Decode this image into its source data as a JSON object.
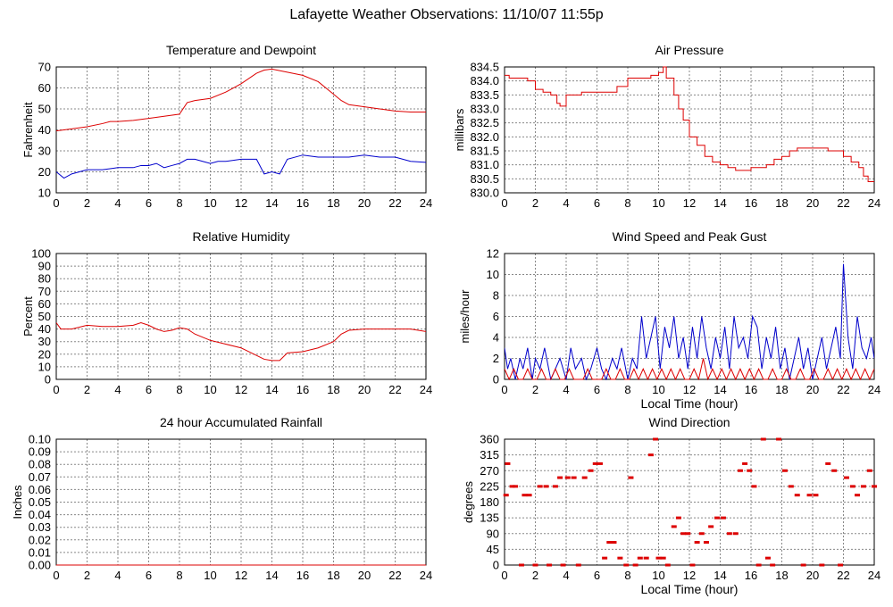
{
  "page": {
    "title": "Lafayette Weather Observations: 11/10/07 11:55p"
  },
  "colors": {
    "red": "#dd0000",
    "blue": "#0000cc",
    "grid": "#888888",
    "frame": "#000000"
  },
  "chart_data": [
    {
      "id": "temp",
      "type": "line",
      "title": "Temperature and Dewpoint",
      "xlabel": "",
      "ylabel": "Fahrenheit",
      "xlim": [
        0,
        24
      ],
      "ylim": [
        10,
        70
      ],
      "xticks": [
        0,
        2,
        4,
        6,
        8,
        10,
        12,
        14,
        16,
        18,
        20,
        22,
        24
      ],
      "xtick_labels": [
        "0",
        "2",
        "4",
        "6",
        "8",
        "10",
        "12",
        "14",
        "16",
        "18",
        "20",
        "22",
        "24"
      ],
      "yticks": [
        10,
        20,
        30,
        40,
        50,
        60,
        70
      ],
      "ytick_labels": [
        "10",
        "20",
        "30",
        "40",
        "50",
        "60",
        "70"
      ],
      "grid": true,
      "series": [
        {
          "color": "#dd0000",
          "style": "line",
          "x": [
            0,
            1,
            2,
            3,
            3.5,
            4,
            5,
            5.5,
            6,
            7,
            8,
            8.5,
            9,
            10,
            11,
            12,
            13,
            13.5,
            14,
            15,
            16,
            17,
            18,
            18.5,
            19,
            20,
            21,
            22,
            23,
            24
          ],
          "y": [
            39.5,
            40.5,
            41.5,
            43,
            44,
            44,
            44.5,
            45,
            45.5,
            46.5,
            47.5,
            53,
            54,
            55,
            58,
            62,
            67,
            68.5,
            69,
            67.5,
            66,
            63,
            57,
            54,
            52,
            51,
            50,
            49,
            48.5,
            48.5
          ]
        },
        {
          "color": "#0000cc",
          "style": "line",
          "x": [
            0,
            0.5,
            1,
            1.5,
            2,
            3,
            4,
            5,
            5.5,
            6,
            6.5,
            7,
            7.5,
            8,
            8.5,
            9,
            9.5,
            10,
            10.5,
            11,
            12,
            13,
            13.5,
            14,
            14.5,
            15,
            15.5,
            16,
            17,
            18,
            19,
            20,
            21,
            22,
            23,
            24
          ],
          "y": [
            20,
            17,
            19,
            20,
            21,
            21,
            22,
            22,
            23,
            23,
            24,
            22,
            23,
            24,
            26,
            26,
            25,
            24,
            25,
            25,
            26,
            26,
            19,
            20,
            19,
            26,
            27,
            28,
            27,
            27,
            27,
            28,
            27,
            27,
            25,
            24.5
          ]
        }
      ]
    },
    {
      "id": "pressure",
      "type": "line",
      "title": "Air Pressure",
      "xlabel": "",
      "ylabel": "millibars",
      "xlim": [
        0,
        24
      ],
      "ylim": [
        830.0,
        834.5
      ],
      "xticks": [
        0,
        2,
        4,
        6,
        8,
        10,
        12,
        14,
        16,
        18,
        20,
        22,
        24
      ],
      "xtick_labels": [
        "0",
        "2",
        "4",
        "6",
        "8",
        "10",
        "12",
        "14",
        "16",
        "18",
        "20",
        "22",
        "24"
      ],
      "yticks": [
        830.0,
        830.5,
        831.0,
        831.5,
        832.0,
        832.5,
        833.0,
        833.5,
        834.0,
        834.5
      ],
      "ytick_labels": [
        "830.0",
        "830.5",
        "831.0",
        "831.5",
        "832.0",
        "832.5",
        "833.0",
        "833.5",
        "834.0",
        "834.5"
      ],
      "grid": true,
      "series": [
        {
          "color": "#dd0000",
          "style": "step",
          "x": [
            0,
            0.3,
            1.5,
            2,
            2.5,
            3,
            3.4,
            3.6,
            4,
            4.5,
            5,
            6,
            7,
            7.3,
            8,
            9,
            9.5,
            10,
            10.3,
            10.5,
            11,
            11.3,
            11.6,
            12,
            12.5,
            13,
            13.5,
            14,
            14.5,
            15,
            16,
            17,
            17.5,
            18,
            18.5,
            19,
            20,
            21,
            21.5,
            22,
            22.5,
            23,
            23.3,
            23.6,
            24
          ],
          "y": [
            834.2,
            834.1,
            834.0,
            833.7,
            833.6,
            833.5,
            833.2,
            833.1,
            833.5,
            833.5,
            833.6,
            833.6,
            833.6,
            833.8,
            834.1,
            834.1,
            834.2,
            834.3,
            834.5,
            834.1,
            833.5,
            833.0,
            832.6,
            832.0,
            831.7,
            831.3,
            831.1,
            831.0,
            830.9,
            830.8,
            830.9,
            831.0,
            831.2,
            831.3,
            831.5,
            831.6,
            831.6,
            831.5,
            831.5,
            831.3,
            831.1,
            830.9,
            830.6,
            830.4,
            830.4
          ]
        }
      ]
    },
    {
      "id": "humidity",
      "type": "line",
      "title": "Relative Humidity",
      "xlabel": "",
      "ylabel": "Percent",
      "xlim": [
        0,
        24
      ],
      "ylim": [
        0,
        100
      ],
      "xticks": [
        0,
        2,
        4,
        6,
        8,
        10,
        12,
        14,
        16,
        18,
        20,
        22,
        24
      ],
      "xtick_labels": [
        "0",
        "2",
        "4",
        "6",
        "8",
        "10",
        "12",
        "14",
        "16",
        "18",
        "20",
        "22",
        "24"
      ],
      "yticks": [
        0,
        10,
        20,
        30,
        40,
        50,
        60,
        70,
        80,
        90,
        100
      ],
      "ytick_labels": [
        "0",
        "10",
        "20",
        "30",
        "40",
        "50",
        "60",
        "70",
        "80",
        "90",
        "100"
      ],
      "grid": true,
      "series": [
        {
          "color": "#dd0000",
          "style": "line",
          "x": [
            0,
            0.3,
            1,
            2,
            3,
            4,
            5,
            5.5,
            6,
            6.5,
            7,
            7.5,
            8,
            8.5,
            9,
            10,
            11,
            12,
            12.5,
            13,
            13.5,
            14,
            14.5,
            15,
            16,
            17,
            18,
            18.5,
            19,
            20,
            21,
            22,
            23,
            24
          ],
          "y": [
            45,
            40,
            40,
            43,
            42,
            42,
            43,
            45,
            43,
            40,
            38,
            39,
            41,
            40,
            36,
            31,
            28,
            25,
            22,
            19,
            16,
            15,
            15,
            21,
            22,
            25,
            30,
            36,
            39,
            40,
            40,
            40,
            40,
            38
          ]
        }
      ]
    },
    {
      "id": "wind",
      "type": "line",
      "title": "Wind Speed and Peak Gust",
      "xlabel": "Local Time (hour)",
      "ylabel": "miles/hour",
      "xlim": [
        0,
        24
      ],
      "ylim": [
        0,
        12
      ],
      "xticks": [
        0,
        2,
        4,
        6,
        8,
        10,
        12,
        14,
        16,
        18,
        20,
        22,
        24
      ],
      "xtick_labels": [
        "0",
        "2",
        "4",
        "6",
        "8",
        "10",
        "12",
        "14",
        "16",
        "18",
        "20",
        "22",
        "24"
      ],
      "yticks": [
        0,
        2,
        4,
        6,
        8,
        10,
        12
      ],
      "ytick_labels": [
        "0",
        "2",
        "4",
        "6",
        "8",
        "10",
        "12"
      ],
      "grid": true,
      "series": [
        {
          "color": "#0000cc",
          "style": "line",
          "x": [
            0,
            0.2,
            0.4,
            0.7,
            1,
            1.2,
            1.5,
            1.8,
            2,
            2.3,
            2.6,
            3,
            3.3,
            3.6,
            4,
            4.3,
            4.6,
            5,
            5.3,
            5.6,
            6,
            6.3,
            6.6,
            7,
            7.3,
            7.6,
            8,
            8.3,
            8.6,
            8.9,
            9.2,
            9.5,
            9.8,
            10.1,
            10.4,
            10.7,
            11,
            11.3,
            11.6,
            11.9,
            12.2,
            12.5,
            12.8,
            13.1,
            13.4,
            13.7,
            14,
            14.3,
            14.6,
            14.9,
            15.2,
            15.5,
            15.8,
            16.1,
            16.4,
            16.7,
            17,
            17.3,
            17.6,
            17.9,
            18.2,
            18.5,
            18.8,
            19.1,
            19.4,
            19.7,
            20,
            20.3,
            20.6,
            20.9,
            21.2,
            21.5,
            21.8,
            22,
            22.3,
            22.6,
            22.9,
            23.2,
            23.5,
            23.8,
            24
          ],
          "y": [
            3,
            1,
            2,
            0,
            2,
            1,
            3,
            0,
            2,
            1,
            3,
            0,
            1,
            2,
            0,
            3,
            1,
            2,
            0,
            1,
            3,
            1,
            0,
            2,
            1,
            3,
            0,
            2,
            1,
            6,
            2,
            4,
            6,
            1,
            5,
            3,
            6,
            2,
            4,
            1,
            5,
            2,
            6,
            3,
            1,
            4,
            2,
            5,
            1,
            6,
            3,
            4,
            2,
            6,
            5,
            1,
            4,
            2,
            5,
            1,
            3,
            0,
            2,
            4,
            1,
            3,
            0,
            2,
            4,
            1,
            3,
            5,
            2,
            11,
            4,
            1,
            6,
            3,
            2,
            4,
            2
          ]
        },
        {
          "color": "#dd0000",
          "style": "line",
          "x": [
            0,
            0.3,
            0.6,
            0.9,
            1.2,
            1.5,
            1.8,
            2.1,
            2.4,
            2.7,
            3,
            3.3,
            3.6,
            3.9,
            4.2,
            4.5,
            4.8,
            5.1,
            5.4,
            5.7,
            6,
            6.3,
            6.6,
            6.9,
            7.2,
            7.5,
            7.8,
            8.1,
            8.4,
            8.7,
            9,
            9.3,
            9.6,
            9.9,
            10.2,
            10.5,
            10.8,
            11.1,
            11.4,
            11.7,
            12,
            12.3,
            12.6,
            12.9,
            13.2,
            13.5,
            13.8,
            14.1,
            14.4,
            14.7,
            15,
            15.3,
            15.6,
            15.9,
            16.2,
            16.5,
            16.8,
            17.1,
            17.4,
            17.7,
            18,
            18.3,
            18.6,
            18.9,
            19.2,
            19.5,
            19.8,
            20.1,
            20.4,
            20.7,
            21,
            21.3,
            21.6,
            21.9,
            22.2,
            22.5,
            22.8,
            23.1,
            23.4,
            23.7,
            24
          ],
          "y": [
            1,
            0,
            1,
            0,
            0,
            1,
            0,
            0,
            1,
            0,
            0,
            1,
            0,
            0,
            1,
            0,
            0,
            0,
            1,
            0,
            0,
            0,
            1,
            0,
            0,
            1,
            0,
            0,
            1,
            0,
            1,
            0,
            1,
            0,
            1,
            0,
            1,
            0,
            1,
            0,
            0,
            1,
            0,
            2,
            0,
            1,
            0,
            1,
            0,
            1,
            0,
            1,
            0,
            1,
            0,
            1,
            0,
            0,
            1,
            0,
            0,
            1,
            0,
            0,
            1,
            0,
            0,
            1,
            0,
            0,
            1,
            0,
            1,
            0,
            1,
            0,
            1,
            0,
            1,
            0,
            1
          ]
        }
      ]
    },
    {
      "id": "rain",
      "type": "line",
      "title": "24 hour Accumulated Rainfall",
      "xlabel": "",
      "ylabel": "Inches",
      "xlim": [
        0,
        24
      ],
      "ylim": [
        0,
        0.1
      ],
      "xticks": [
        0,
        2,
        4,
        6,
        8,
        10,
        12,
        14,
        16,
        18,
        20,
        22,
        24
      ],
      "xtick_labels": [
        "0",
        "2",
        "4",
        "6",
        "8",
        "10",
        "12",
        "14",
        "16",
        "18",
        "20",
        "22",
        "24"
      ],
      "yticks": [
        0,
        0.01,
        0.02,
        0.03,
        0.04,
        0.05,
        0.06,
        0.07,
        0.08,
        0.09,
        0.1
      ],
      "ytick_labels": [
        "0.00",
        "0.01",
        "0.02",
        "0.03",
        "0.04",
        "0.05",
        "0.06",
        "0.07",
        "0.08",
        "0.09",
        "0.10"
      ],
      "grid": true,
      "series": [
        {
          "color": "#dd0000",
          "style": "line",
          "x": [
            0,
            24
          ],
          "y": [
            0,
            0
          ]
        }
      ]
    },
    {
      "id": "direction",
      "type": "scatter",
      "title": "Wind Direction",
      "xlabel": "Local Time (hour)",
      "ylabel": "degrees",
      "xlim": [
        0,
        24
      ],
      "ylim": [
        0,
        360
      ],
      "xticks": [
        0,
        2,
        4,
        6,
        8,
        10,
        12,
        14,
        16,
        18,
        20,
        22,
        24
      ],
      "xtick_labels": [
        "0",
        "2",
        "4",
        "6",
        "8",
        "10",
        "12",
        "14",
        "16",
        "18",
        "20",
        "22",
        "24"
      ],
      "yticks": [
        0,
        45,
        90,
        135,
        180,
        225,
        270,
        315,
        360
      ],
      "ytick_labels": [
        "0",
        "45",
        "90",
        "135",
        "180",
        "225",
        "270",
        "315",
        "360"
      ],
      "grid": true,
      "series": [
        {
          "color": "#dd0000",
          "style": "dash",
          "x": [
            0.1,
            0.2,
            0.5,
            0.7,
            1.1,
            1.3,
            1.6,
            2.0,
            2.3,
            2.7,
            2.9,
            3.3,
            3.6,
            3.8,
            4.1,
            4.5,
            4.8,
            5.2,
            5.6,
            5.9,
            6.2,
            6.5,
            6.8,
            7.1,
            7.5,
            7.9,
            8.2,
            8.5,
            8.8,
            9.2,
            9.5,
            9.8,
            10.0,
            10.3,
            10.6,
            11.0,
            11.3,
            11.6,
            11.9,
            12.2,
            12.5,
            12.8,
            13.1,
            13.4,
            13.8,
            14.2,
            14.6,
            15.0,
            15.3,
            15.6,
            15.9,
            16.2,
            16.5,
            16.8,
            17.1,
            17.4,
            17.8,
            18.2,
            18.6,
            19.0,
            19.4,
            19.8,
            20.2,
            20.6,
            21.0,
            21.4,
            21.8,
            22.2,
            22.6,
            22.9,
            23.3,
            23.7,
            24.0
          ],
          "y": [
            200,
            290,
            225,
            225,
            0,
            200,
            200,
            0,
            225,
            225,
            0,
            225,
            250,
            0,
            250,
            250,
            0,
            250,
            270,
            290,
            290,
            20,
            65,
            65,
            20,
            0,
            250,
            0,
            20,
            20,
            315,
            360,
            20,
            20,
            0,
            110,
            135,
            90,
            90,
            0,
            65,
            90,
            65,
            110,
            135,
            135,
            90,
            90,
            270,
            290,
            270,
            225,
            0,
            360,
            20,
            0,
            360,
            270,
            225,
            200,
            0,
            200,
            200,
            0,
            290,
            270,
            0,
            250,
            225,
            200,
            225,
            270,
            225
          ]
        }
      ]
    }
  ]
}
